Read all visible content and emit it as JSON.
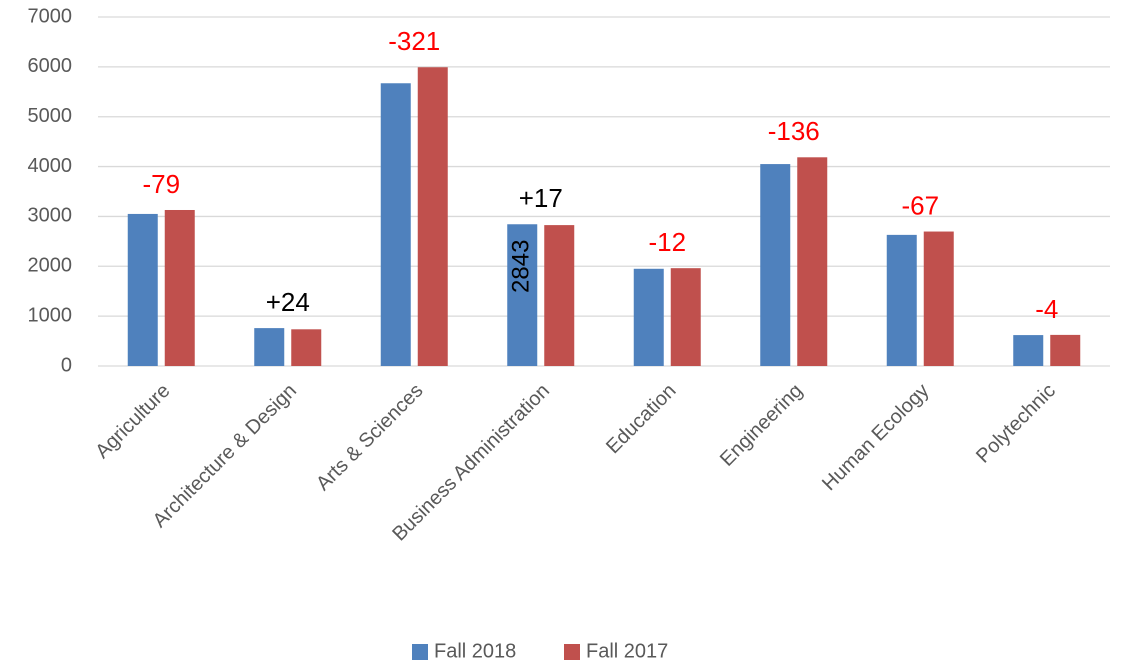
{
  "chart_data": {
    "type": "bar",
    "categories": [
      "Agriculture",
      "Architecture & Design",
      "Arts & Sciences",
      "Business Administration",
      "Education",
      "Engineering",
      "Human Ecology",
      "Polytechnic"
    ],
    "series": [
      {
        "name": "Fall 2018",
        "color": "#4f81bd",
        "values": [
          3050,
          760,
          5671,
          2843,
          1950,
          4050,
          2630,
          620
        ],
        "value_labels": [
          null,
          null,
          null,
          "2843",
          null,
          null,
          null,
          null
        ]
      },
      {
        "name": "Fall 2017",
        "color": "#c0504d",
        "values": [
          3129,
          736,
          5992,
          2826,
          1962,
          4186,
          2697,
          624
        ]
      }
    ],
    "annotations": [
      {
        "text": "-79",
        "color": "#ff0000"
      },
      {
        "text": "+24",
        "color": "#000000"
      },
      {
        "text": "-321",
        "color": "#ff0000"
      },
      {
        "text": "+17",
        "color": "#000000"
      },
      {
        "text": "-12",
        "color": "#ff0000"
      },
      {
        "text": "-136",
        "color": "#ff0000"
      },
      {
        "text": "-67",
        "color": "#ff0000"
      },
      {
        "text": "-4",
        "color": "#ff0000"
      }
    ],
    "ylim": [
      0,
      7000
    ],
    "yticks": [
      0,
      1000,
      2000,
      3000,
      4000,
      5000,
      6000,
      7000
    ],
    "grid": true,
    "legend": "bottom"
  }
}
